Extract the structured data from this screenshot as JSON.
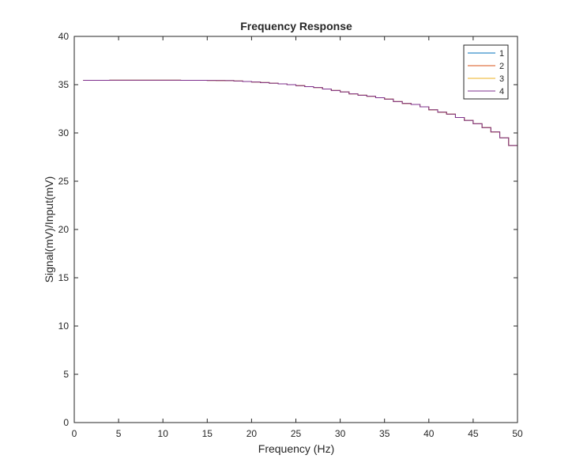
{
  "chart_data": {
    "type": "line",
    "title": "Frequency Response",
    "xlabel": "Frequency (Hz)",
    "ylabel": "Signal(mV)/Input(mV)",
    "xlim": [
      0,
      50
    ],
    "ylim": [
      0,
      40
    ],
    "xticks": [
      0,
      5,
      10,
      15,
      20,
      25,
      30,
      35,
      40,
      45,
      50
    ],
    "yticks": [
      0,
      5,
      10,
      15,
      20,
      25,
      30,
      35,
      40
    ],
    "grid": false,
    "legend_position": "top-right",
    "step": true,
    "x": [
      1,
      2,
      3,
      4,
      5,
      6,
      7,
      8,
      9,
      10,
      11,
      12,
      13,
      14,
      15,
      16,
      17,
      18,
      19,
      20,
      21,
      22,
      23,
      24,
      25,
      26,
      27,
      28,
      29,
      30,
      31,
      32,
      33,
      34,
      35,
      36,
      37,
      38,
      39,
      40,
      41,
      42,
      43,
      44,
      45,
      46,
      47,
      48,
      49,
      50
    ],
    "series": [
      {
        "name": "1",
        "color": "#0072BD",
        "values": [
          35.45,
          35.45,
          35.45,
          35.46,
          35.46,
          35.46,
          35.46,
          35.46,
          35.46,
          35.46,
          35.46,
          35.45,
          35.45,
          35.45,
          35.44,
          35.43,
          35.42,
          35.38,
          35.33,
          35.28,
          35.22,
          35.15,
          35.08,
          35.0,
          34.9,
          34.8,
          34.7,
          34.55,
          34.4,
          34.25,
          34.05,
          33.9,
          33.8,
          33.65,
          33.5,
          33.25,
          33.05,
          32.95,
          32.7,
          32.4,
          32.15,
          31.95,
          31.6,
          31.3,
          30.95,
          30.55,
          30.1,
          29.5,
          28.7,
          27.8
        ]
      },
      {
        "name": "2",
        "color": "#D95319",
        "values": [
          35.45,
          35.45,
          35.45,
          35.46,
          35.46,
          35.46,
          35.46,
          35.46,
          35.46,
          35.46,
          35.46,
          35.45,
          35.45,
          35.45,
          35.44,
          35.43,
          35.42,
          35.38,
          35.33,
          35.28,
          35.22,
          35.15,
          35.08,
          35.0,
          34.9,
          34.8,
          34.7,
          34.55,
          34.4,
          34.25,
          34.05,
          33.9,
          33.8,
          33.65,
          33.5,
          33.25,
          33.05,
          32.95,
          32.7,
          32.4,
          32.15,
          31.95,
          31.6,
          31.3,
          30.95,
          30.55,
          30.1,
          29.5,
          28.7,
          27.8
        ]
      },
      {
        "name": "3",
        "color": "#EDB120",
        "values": [
          35.45,
          35.45,
          35.45,
          35.46,
          35.46,
          35.46,
          35.46,
          35.46,
          35.46,
          35.46,
          35.46,
          35.45,
          35.45,
          35.45,
          35.44,
          35.43,
          35.42,
          35.38,
          35.33,
          35.28,
          35.22,
          35.15,
          35.08,
          35.0,
          34.9,
          34.8,
          34.7,
          34.55,
          34.4,
          34.25,
          34.05,
          33.9,
          33.8,
          33.65,
          33.5,
          33.25,
          33.05,
          32.95,
          32.7,
          32.4,
          32.15,
          31.95,
          31.6,
          31.3,
          30.95,
          30.55,
          30.1,
          29.5,
          28.7,
          27.8
        ]
      },
      {
        "name": "4",
        "color": "#7E2F8E",
        "values": [
          35.45,
          35.45,
          35.45,
          35.46,
          35.46,
          35.46,
          35.46,
          35.46,
          35.46,
          35.46,
          35.46,
          35.45,
          35.45,
          35.45,
          35.44,
          35.43,
          35.42,
          35.38,
          35.33,
          35.28,
          35.22,
          35.15,
          35.08,
          35.0,
          34.9,
          34.8,
          34.7,
          34.55,
          34.4,
          34.25,
          34.05,
          33.9,
          33.8,
          33.65,
          33.5,
          33.25,
          33.05,
          32.95,
          32.7,
          32.4,
          32.15,
          31.95,
          31.6,
          31.3,
          30.95,
          30.55,
          30.1,
          29.5,
          28.7,
          27.8
        ]
      }
    ]
  }
}
